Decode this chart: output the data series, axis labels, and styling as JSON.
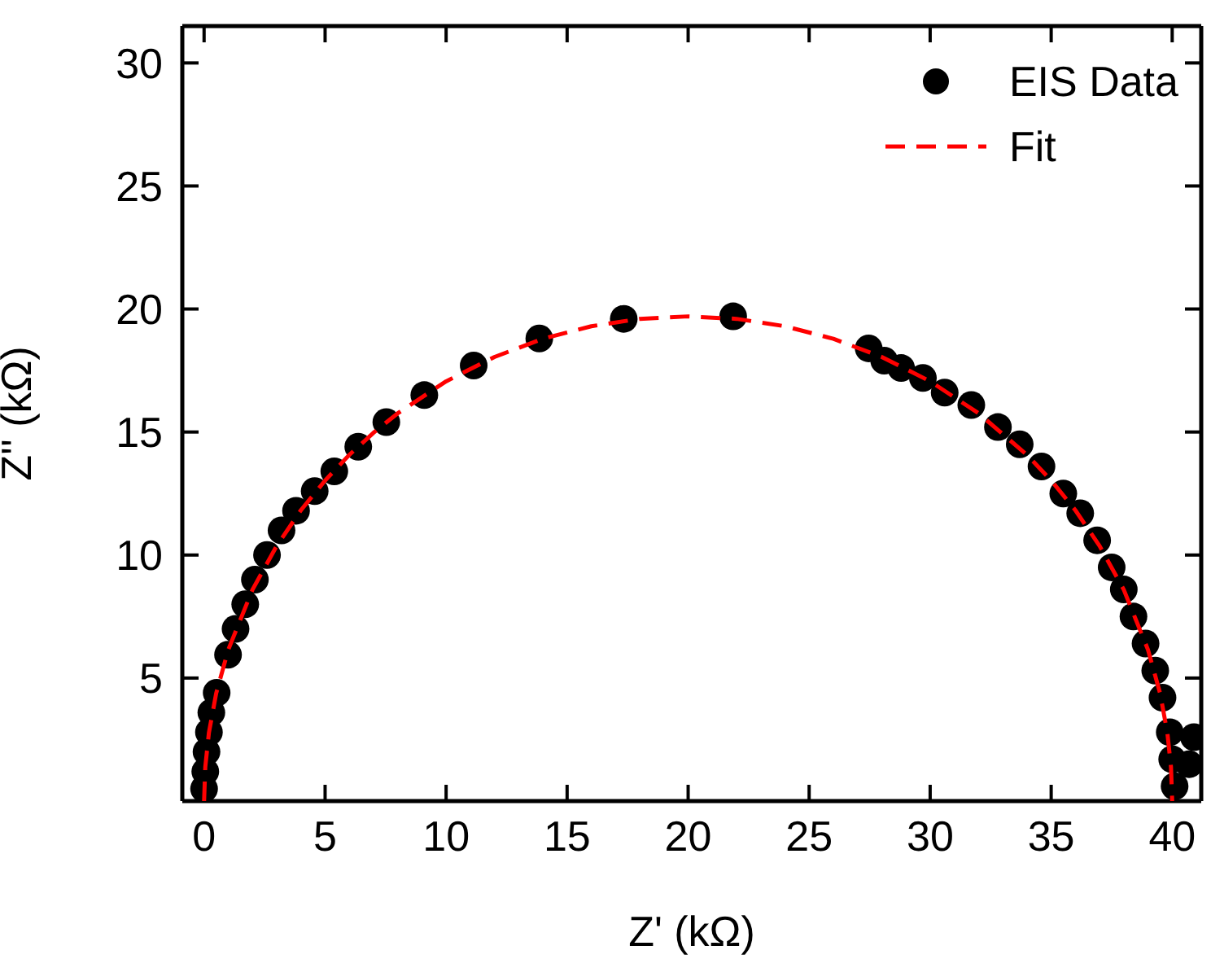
{
  "chart_data": {
    "type": "scatter",
    "xlabel": "Z' (kΩ)",
    "ylabel": "Z'' (kΩ)",
    "xlim": [
      -0.9,
      41.2
    ],
    "ylim": [
      0,
      31.5
    ],
    "xticks": [
      0,
      5,
      10,
      15,
      20,
      25,
      30,
      35,
      40
    ],
    "yticks": [
      5,
      10,
      15,
      20,
      25,
      30
    ],
    "legend": "top right",
    "series": [
      {
        "name": "EIS Data",
        "marker": "circle",
        "color": "#000000",
        "x": [
          0,
          0.05,
          0.1,
          0.2,
          0.3,
          0.52,
          0.99,
          1.3,
          1.7,
          2.1,
          2.6,
          3.2,
          3.8,
          4.57,
          5.38,
          6.37,
          7.53,
          9.1,
          11.14,
          13.85,
          17.34,
          21.86,
          27.46,
          28.1,
          28.8,
          29.7,
          30.6,
          31.7,
          32.8,
          33.7,
          34.6,
          35.5,
          36.2,
          36.9,
          37.5,
          38.0,
          38.4,
          38.9,
          39.3,
          39.6,
          39.9,
          40.0,
          40.1,
          40.7,
          40.9
        ],
        "values": [
          0.5,
          1.2,
          2,
          2.8,
          3.6,
          4.4,
          5.95,
          7,
          8,
          9,
          10,
          11,
          11.8,
          12.6,
          13.4,
          14.4,
          15.4,
          16.5,
          17.7,
          18.8,
          19.6,
          19.7,
          18.4,
          17.9,
          17.6,
          17.2,
          16.6,
          16.1,
          15.2,
          14.5,
          13.6,
          12.5,
          11.7,
          10.6,
          9.5,
          8.6,
          7.5,
          6.4,
          5.3,
          4.2,
          2.8,
          1.7,
          0.6,
          1.5,
          2.6
        ]
      },
      {
        "name": "Fit",
        "type": "line",
        "marker": "none",
        "line_style": "dashed",
        "color": "#ff0000",
        "x": [
          0,
          0.05,
          0.2,
          0.5,
          1,
          2,
          3,
          4,
          5,
          6,
          7,
          8,
          10,
          12,
          14,
          16,
          18,
          20,
          22,
          24,
          26,
          28,
          30,
          32,
          34,
          35,
          36,
          37,
          38,
          39,
          39.5,
          39.8,
          39.95,
          40
        ],
        "values": [
          0,
          1.39,
          2.78,
          4.38,
          6.15,
          8.59,
          10.37,
          11.82,
          13.03,
          14.07,
          14.97,
          15.76,
          17.06,
          18.05,
          18.79,
          19.3,
          19.6,
          19.7,
          19.6,
          19.3,
          18.79,
          18.05,
          17.06,
          15.76,
          14.07,
          13.03,
          11.82,
          10.37,
          8.59,
          6.15,
          4.38,
          2.78,
          1.39,
          0
        ]
      }
    ]
  }
}
